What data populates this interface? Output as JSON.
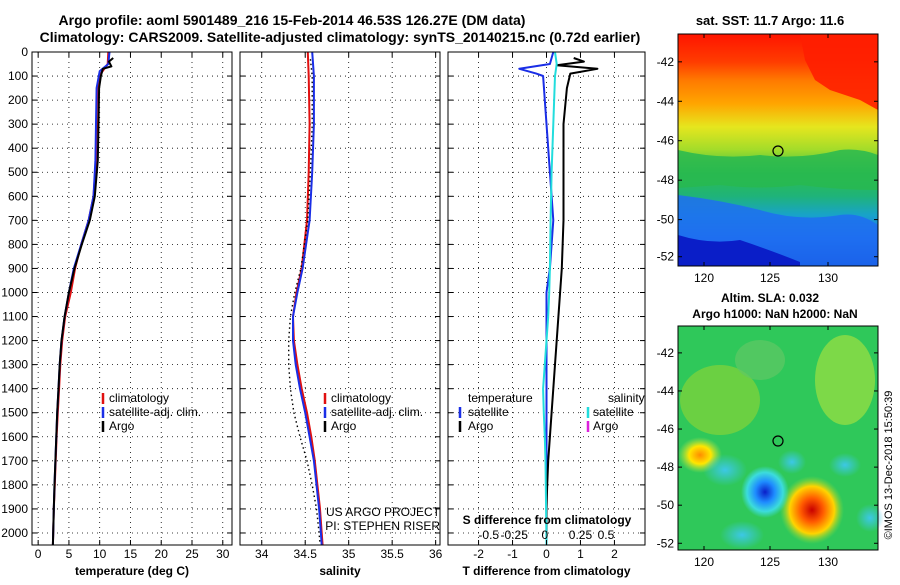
{
  "header": {
    "line1": "Argo profile: aoml 5901489_216 15-Feb-2014 46.53S 126.27E (DM data)",
    "line2": "Climatology: CARS2009. Satellite-adjusted climatology: synTS_20140215.nc (0.72d earlier)"
  },
  "colors": {
    "climatology": "#e01010",
    "satellite": "#1a2ee6",
    "argo": "#000000",
    "sat_salinity": "#22dddd",
    "argo_salinity": "#dd22dd"
  },
  "depth_ticks": [
    0,
    100,
    200,
    300,
    400,
    500,
    600,
    700,
    800,
    900,
    1000,
    1100,
    1200,
    1300,
    1400,
    1500,
    1600,
    1700,
    1800,
    1900,
    2000
  ],
  "chart_data": [
    {
      "type": "line",
      "title": "",
      "xlabel": "temperature (deg C)",
      "ylabel": "",
      "xlim": [
        -1,
        31.5
      ],
      "ylim": [
        2050,
        0
      ],
      "xticks": [
        0,
        5,
        10,
        15,
        20,
        25,
        30
      ],
      "legend_position": "lower-center",
      "legend": [
        {
          "label": "climatology",
          "color": "#e01010"
        },
        {
          "label": "satellite-adj. clim.",
          "color": "#1a2ee6"
        },
        {
          "label": "Argo",
          "color": "#000000"
        }
      ],
      "series": [
        {
          "name": "climatology",
          "color": "#e01010",
          "style": "solid",
          "points": [
            [
              11.4,
              0
            ],
            [
              11.3,
              50
            ],
            [
              10.2,
              90
            ],
            [
              9.6,
              150
            ],
            [
              9.5,
              300
            ],
            [
              9.4,
              450
            ],
            [
              9.0,
              600
            ],
            [
              8.2,
              700
            ],
            [
              7.0,
              800
            ],
            [
              6.0,
              900
            ],
            [
              5.3,
              1000
            ],
            [
              4.4,
              1100
            ],
            [
              3.9,
              1200
            ],
            [
              3.6,
              1300
            ],
            [
              3.4,
              1400
            ],
            [
              3.2,
              1500
            ],
            [
              3.0,
              1600
            ],
            [
              2.85,
              1700
            ],
            [
              2.7,
              1800
            ],
            [
              2.55,
              1900
            ],
            [
              2.45,
              2000
            ],
            [
              2.4,
              2050
            ]
          ]
        },
        {
          "name": "satellite-adj. clim.",
          "color": "#1a2ee6",
          "style": "solid",
          "points": [
            [
              11.6,
              0
            ],
            [
              11.4,
              50
            ],
            [
              10.0,
              80
            ],
            [
              9.5,
              150
            ],
            [
              9.4,
              300
            ],
            [
              9.3,
              450
            ],
            [
              9.0,
              600
            ],
            [
              8.2,
              700
            ],
            [
              7.0,
              800
            ],
            [
              5.8,
              900
            ],
            [
              5.0,
              1000
            ],
            [
              4.3,
              1100
            ],
            [
              3.8,
              1200
            ],
            [
              3.5,
              1300
            ],
            [
              3.3,
              1400
            ],
            [
              3.1,
              1500
            ],
            [
              2.95,
              1600
            ],
            [
              2.8,
              1700
            ],
            [
              2.65,
              1800
            ],
            [
              2.55,
              1900
            ],
            [
              2.45,
              2000
            ],
            [
              2.4,
              2050
            ]
          ]
        },
        {
          "name": "Argo",
          "color": "#000000",
          "style": "solid",
          "points": [
            [
              12.2,
              25
            ],
            [
              11.5,
              40
            ],
            [
              11.9,
              60
            ],
            [
              10.5,
              70
            ],
            [
              10.2,
              100
            ],
            [
              9.9,
              150
            ],
            [
              9.8,
              300
            ],
            [
              9.7,
              450
            ],
            [
              9.2,
              600
            ],
            [
              8.4,
              700
            ],
            [
              7.1,
              800
            ],
            [
              5.9,
              900
            ],
            [
              5.0,
              1000
            ],
            [
              4.3,
              1100
            ],
            [
              3.8,
              1200
            ],
            [
              3.5,
              1300
            ],
            [
              3.3,
              1400
            ],
            [
              3.1,
              1500
            ],
            [
              2.95,
              1600
            ],
            [
              2.8,
              1700
            ],
            [
              2.65,
              1800
            ],
            [
              2.55,
              1900
            ],
            [
              2.45,
              2000
            ],
            [
              2.4,
              2050
            ]
          ]
        }
      ]
    },
    {
      "type": "line",
      "title": "",
      "xlabel": "salinity",
      "ylabel": "",
      "xlim": [
        33.75,
        36.05
      ],
      "ylim": [
        2050,
        0
      ],
      "xticks": [
        34,
        34.5,
        35,
        35.5,
        36
      ],
      "legend_position": "center",
      "legend": [
        {
          "label": "climatology",
          "color": "#e01010"
        },
        {
          "label": "satellite-adj. clim.",
          "color": "#1a2ee6"
        },
        {
          "label": "Argo",
          "color": "#000000"
        }
      ],
      "annotation_lines": [
        "US ARGO PROJECT",
        "PI: STEPHEN RISER"
      ],
      "series": [
        {
          "name": "climatology",
          "color": "#e01010",
          "style": "solid",
          "points": [
            [
              34.53,
              0
            ],
            [
              34.54,
              100
            ],
            [
              34.55,
              300
            ],
            [
              34.54,
              500
            ],
            [
              34.52,
              700
            ],
            [
              34.46,
              900
            ],
            [
              34.4,
              1000
            ],
            [
              34.36,
              1100
            ],
            [
              34.37,
              1200
            ],
            [
              34.41,
              1300
            ],
            [
              34.46,
              1400
            ],
            [
              34.52,
              1500
            ],
            [
              34.57,
              1600
            ],
            [
              34.61,
              1700
            ],
            [
              34.64,
              1800
            ],
            [
              34.67,
              1900
            ],
            [
              34.69,
              2000
            ],
            [
              34.7,
              2050
            ]
          ]
        },
        {
          "name": "satellite-adj. clim.",
          "color": "#1a2ee6",
          "style": "solid",
          "points": [
            [
              34.58,
              0
            ],
            [
              34.6,
              100
            ],
            [
              34.6,
              300
            ],
            [
              34.58,
              500
            ],
            [
              34.55,
              700
            ],
            [
              34.47,
              900
            ],
            [
              34.41,
              1000
            ],
            [
              34.36,
              1100
            ],
            [
              34.36,
              1200
            ],
            [
              34.39,
              1300
            ],
            [
              34.44,
              1400
            ],
            [
              34.5,
              1500
            ],
            [
              34.55,
              1600
            ],
            [
              34.6,
              1700
            ],
            [
              34.63,
              1800
            ],
            [
              34.66,
              1900
            ],
            [
              34.68,
              2000
            ],
            [
              34.69,
              2050
            ]
          ]
        },
        {
          "name": "Argo",
          "color": "#000000",
          "style": "dotted",
          "points": [
            [
              34.56,
              30
            ],
            [
              34.58,
              100
            ],
            [
              34.58,
              300
            ],
            [
              34.56,
              500
            ],
            [
              34.53,
              700
            ],
            [
              34.45,
              900
            ],
            [
              34.38,
              1000
            ],
            [
              34.33,
              1100
            ],
            [
              34.31,
              1200
            ],
            [
              34.31,
              1300
            ],
            [
              34.33,
              1400
            ],
            [
              34.37,
              1500
            ],
            [
              34.44,
              1600
            ],
            [
              34.52,
              1700
            ],
            [
              34.58,
              1800
            ],
            [
              34.63,
              1900
            ],
            [
              34.66,
              2000
            ],
            [
              34.67,
              2050
            ]
          ]
        }
      ]
    },
    {
      "type": "line",
      "title": "",
      "xlabel": "T difference from climatology",
      "ylabel": "",
      "xlim": [
        -2.9,
        2.9
      ],
      "ylim": [
        2050,
        0
      ],
      "xticks": [
        -2,
        -1,
        0,
        1,
        2
      ],
      "secondary_axis": {
        "label": "S difference from climatology",
        "ticks": [
          "-0.5",
          "-0.25",
          "0",
          "0.25",
          "0.5"
        ]
      },
      "legend_position": "lower-center",
      "legend_groups": [
        {
          "heading": "temperature",
          "items": [
            {
              "label": "satellite",
              "color": "#1a2ee6"
            },
            {
              "label": "Argo",
              "color": "#000000"
            }
          ]
        },
        {
          "heading": "salinity",
          "items": [
            {
              "label": "satellite",
              "color": "#22dddd"
            },
            {
              "label": "Argo",
              "color": "#dd22dd"
            }
          ]
        }
      ],
      "series": [
        {
          "name": "temperature satellite",
          "color": "#1a2ee6",
          "style": "solid",
          "points": [
            [
              0.2,
              0
            ],
            [
              0.1,
              50
            ],
            [
              -0.8,
              70
            ],
            [
              -0.3,
              90
            ],
            [
              -0.1,
              100
            ],
            [
              0.0,
              300
            ],
            [
              0.1,
              500
            ],
            [
              0.2,
              700
            ],
            [
              0.1,
              900
            ],
            [
              0.0,
              1000
            ],
            [
              0.0,
              1200
            ],
            [
              0.0,
              1400
            ],
            [
              0.0,
              1600
            ],
            [
              0.0,
              1800
            ],
            [
              0.0,
              2000
            ],
            [
              0.0,
              2050
            ]
          ]
        },
        {
          "name": "temperature Argo",
          "color": "#000000",
          "style": "solid",
          "points": [
            [
              0.8,
              25
            ],
            [
              1.1,
              40
            ],
            [
              0.3,
              55
            ],
            [
              1.5,
              70
            ],
            [
              0.7,
              90
            ],
            [
              0.6,
              150
            ],
            [
              0.5,
              300
            ],
            [
              0.5,
              500
            ],
            [
              0.5,
              700
            ],
            [
              0.45,
              900
            ],
            [
              0.4,
              1000
            ],
            [
              0.35,
              1100
            ],
            [
              0.3,
              1200
            ],
            [
              0.25,
              1300
            ],
            [
              0.2,
              1400
            ],
            [
              0.15,
              1500
            ],
            [
              0.1,
              1600
            ],
            [
              0.05,
              1700
            ],
            [
              0.02,
              1800
            ],
            [
              0.0,
              1900
            ],
            [
              0.0,
              2050
            ]
          ]
        },
        {
          "name": "salinity satellite",
          "color": "#22dddd",
          "style": "solid",
          "points": [
            [
              0.25,
              0
            ],
            [
              0.3,
              50
            ],
            [
              0.25,
              100
            ],
            [
              0.2,
              300
            ],
            [
              0.15,
              500
            ],
            [
              0.12,
              700
            ],
            [
              0.1,
              900
            ],
            [
              0.08,
              1000
            ],
            [
              0.05,
              1100
            ],
            [
              0.0,
              1200
            ],
            [
              -0.05,
              1300
            ],
            [
              -0.1,
              1400
            ],
            [
              -0.08,
              1500
            ],
            [
              -0.05,
              1600
            ],
            [
              -0.03,
              1700
            ],
            [
              -0.02,
              1800
            ],
            [
              0.0,
              2050
            ]
          ]
        }
      ]
    }
  ],
  "maps": {
    "sst": {
      "title": "sat. SST: 11.7 Argo: 11.6",
      "lat_ticks": [
        "-42",
        "-44",
        "-46",
        "-48",
        "-50",
        "-52"
      ],
      "lon_ticks": [
        "120",
        "125",
        "130"
      ]
    },
    "sla": {
      "title_line1": "Altim. SLA: 0.032",
      "title_line2": "Argo h1000: NaN h2000: NaN",
      "lat_ticks": [
        "-42",
        "-44",
        "-46",
        "-48",
        "-50",
        "-52"
      ],
      "lon_ticks": [
        "120",
        "125",
        "130"
      ]
    }
  },
  "footer": {
    "stamp": "©IMOS 13-Dec-2018 15:50:39"
  }
}
